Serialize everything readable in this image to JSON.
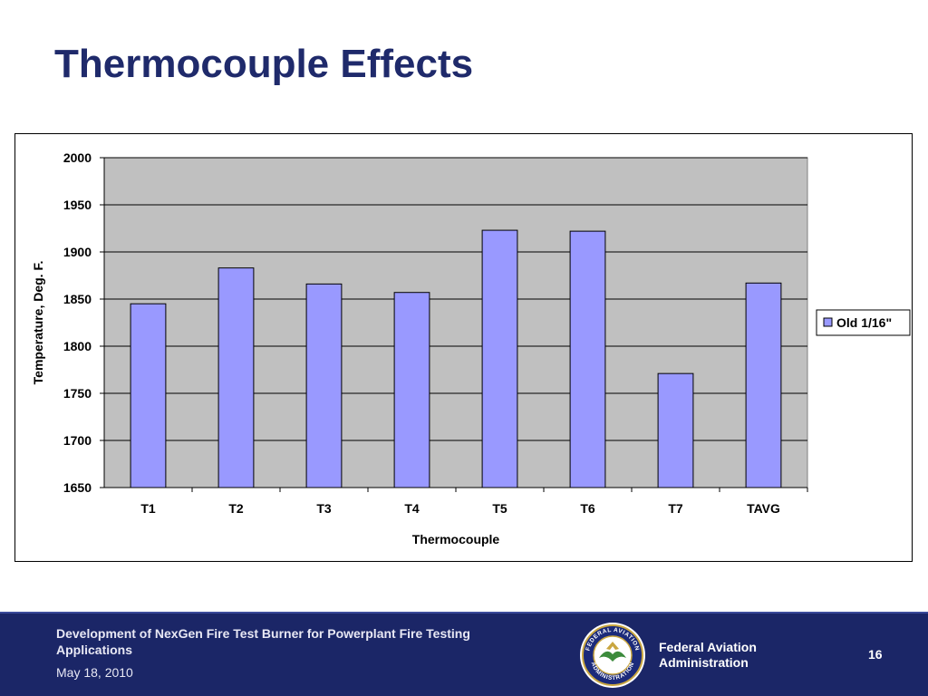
{
  "slide": {
    "title": "Thermocouple Effects"
  },
  "footer": {
    "presentation_title": "Development of NexGen Fire Test Burner for Powerplant Fire Testing Applications",
    "date": "May 18, 2010",
    "org_line1": "Federal Aviation",
    "org_line2": "Administration",
    "page_number": "16",
    "seal_text_top": "FEDERAL AVIATION",
    "seal_text_bottom": "ADMINISTRATION"
  },
  "colors": {
    "title": "#1f2a6b",
    "footer_bg": "#1b2667",
    "bar_fill": "#9999ff",
    "plot_bg": "#c0c0c0"
  },
  "chart_data": {
    "type": "bar",
    "title": "",
    "xlabel": "Thermocouple",
    "ylabel": "Temperature, Deg. F.",
    "categories": [
      "T1",
      "T2",
      "T3",
      "T4",
      "T5",
      "T6",
      "T7",
      "TAVG"
    ],
    "series": [
      {
        "name": "Old 1/16\"",
        "values": [
          1845,
          1883,
          1866,
          1857,
          1923,
          1922,
          1771,
          1867
        ]
      }
    ],
    "ylim": [
      1650,
      2000
    ],
    "yticks": [
      1650,
      1700,
      1750,
      1800,
      1850,
      1900,
      1950,
      2000
    ],
    "grid": true,
    "legend": "right"
  }
}
